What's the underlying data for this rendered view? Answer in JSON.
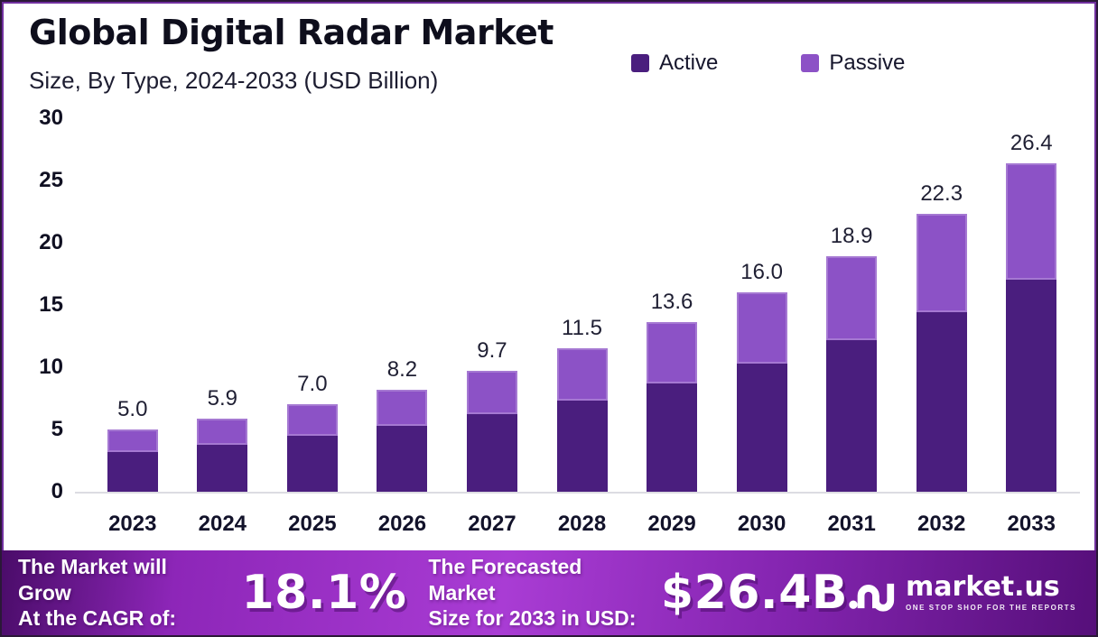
{
  "header": {
    "title": "Global Digital Radar Market",
    "subtitle": "Size, By Type, 2024-2033 (USD Billion)"
  },
  "chart_data": {
    "type": "bar",
    "stacked": true,
    "title": "Global Digital Radar Market",
    "subtitle": "Size, By Type, 2024-2033 (USD Billion)",
    "unit": "USD Billion",
    "categories": [
      "2023",
      "2024",
      "2025",
      "2026",
      "2027",
      "2028",
      "2029",
      "2030",
      "2031",
      "2032",
      "2033"
    ],
    "series": [
      {
        "name": "Active",
        "color": "#4A1E7E",
        "values": [
          3.2,
          3.8,
          4.5,
          5.3,
          6.2,
          7.3,
          8.7,
          10.3,
          12.2,
          14.4,
          17.0
        ]
      },
      {
        "name": "Passive",
        "color": "#8C52C6",
        "values": [
          1.8,
          2.1,
          2.5,
          2.9,
          3.5,
          4.2,
          4.9,
          5.7,
          6.7,
          7.9,
          9.4
        ]
      }
    ],
    "totals": [
      5.0,
      5.9,
      7.0,
      8.2,
      9.7,
      11.5,
      13.6,
      16.0,
      18.9,
      22.3,
      26.4
    ],
    "total_labels": [
      "5.0",
      "5.9",
      "7.0",
      "8.2",
      "9.7",
      "11.5",
      "13.6",
      "16.0",
      "18.9",
      "22.3",
      "26.4"
    ],
    "ylim": [
      0,
      30
    ],
    "yticks": [
      0,
      5,
      10,
      15,
      20,
      25,
      30
    ],
    "grid": false,
    "legend_position": "top-right"
  },
  "footer": {
    "cagr_label_line1": "The Market will Grow",
    "cagr_label_line2": "At the CAGR of:",
    "cagr_value": "18.1%",
    "forecast_label_line1": "The Forecasted Market",
    "forecast_label_line2": "Size for 2033 in USD:",
    "forecast_value": "$26.4B",
    "logo_text": "market.us",
    "logo_tagline": "ONE STOP SHOP FOR THE REPORTS"
  },
  "colors": {
    "active": "#4A1E7E",
    "passive": "#8C52C6",
    "frame_border": "#71309F",
    "axis_line": "#DCDCE2",
    "footer_gradient_start": "#4A0C69",
    "footer_gradient_mid": "#A93CD4",
    "footer_gradient_end": "#560F7A"
  }
}
